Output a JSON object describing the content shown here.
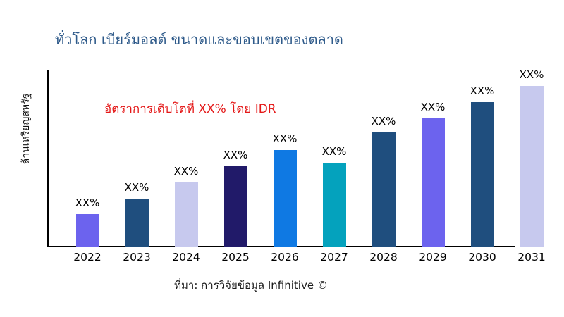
{
  "title": "ทั่วโลก เบียร์มอลต์ ขนาดและขอบเขตของตลาด",
  "title_color": "#2e5a8a",
  "annotation": {
    "text": "อัตราการเติบโตที่ XX% โดย IDR",
    "color": "#e41717"
  },
  "source": "ที่มา: การวิจัยข้อมูล Infinitive ©",
  "chart_data": {
    "type": "bar",
    "title": "ทั่วโลก เบียร์มอลต์ ขนาดและขอบเขตของตลาด",
    "xlabel": "",
    "ylabel": "ล้านเหรียญสหรัฐ",
    "categories": [
      "2022",
      "2023",
      "2024",
      "2025",
      "2026",
      "2027",
      "2028",
      "2029",
      "2030",
      "2031"
    ],
    "values_relative_pct": [
      20,
      30,
      40,
      50,
      60,
      52,
      71,
      80,
      90,
      100
    ],
    "bar_labels": [
      "XX%",
      "XX%",
      "XX%",
      "XX%",
      "XX%",
      "XX%",
      "XX%",
      "XX%",
      "XX%",
      "XX%"
    ],
    "bar_colors": [
      "#6c63ee",
      "#1f4e7e",
      "#c7c9ee",
      "#211a69",
      "#0f79e3",
      "#04a2bd",
      "#1f4e7e",
      "#6c63ee",
      "#1f4e7e",
      "#c7c9ee"
    ],
    "annotation": "อัตราการเติบโตที่ XX% โดย IDR",
    "grid": false,
    "legend": "none",
    "axis_color": "#000000",
    "note": "values are masked as XX% in the source image; values_relative_pct are bar heights relative to the tallest bar (2031 = 100)"
  }
}
